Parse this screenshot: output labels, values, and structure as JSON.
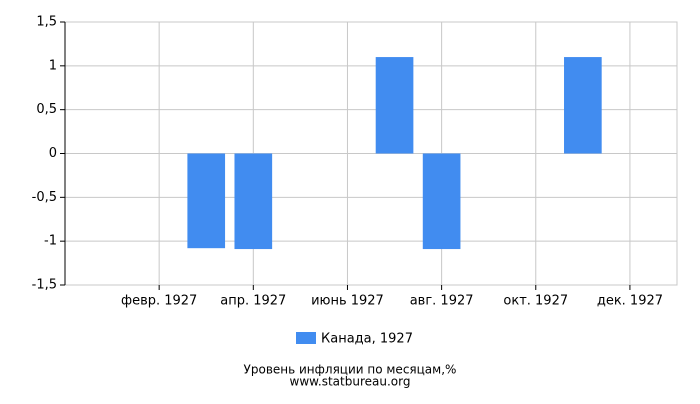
{
  "chart_data": {
    "type": "bar",
    "categories": [
      null,
      "февр. 1927",
      null,
      "апр. 1927",
      null,
      "июнь 1927",
      null,
      "авг. 1927",
      null,
      "окт. 1927",
      null,
      "дек. 1927"
    ],
    "series": [
      {
        "name": "Канада, 1927",
        "color": "#418cf0",
        "values": [
          null,
          null,
          -1.08,
          -1.09,
          null,
          null,
          1.1,
          -1.09,
          null,
          null,
          1.1,
          null
        ]
      }
    ],
    "ylim": [
      -1.5,
      1.5
    ],
    "yticks": [
      {
        "value": -1.5,
        "label": "-1,5"
      },
      -1,
      {
        "value": -0.5,
        "label": "-0,5"
      },
      0,
      {
        "value": 0.5,
        "label": "0,5"
      },
      1,
      {
        "value": 1.5,
        "label": "1,5"
      }
    ],
    "grid": true,
    "footer": [
      "Уровень инфляции по месяцам,%",
      "www.statbureau.org"
    ]
  }
}
